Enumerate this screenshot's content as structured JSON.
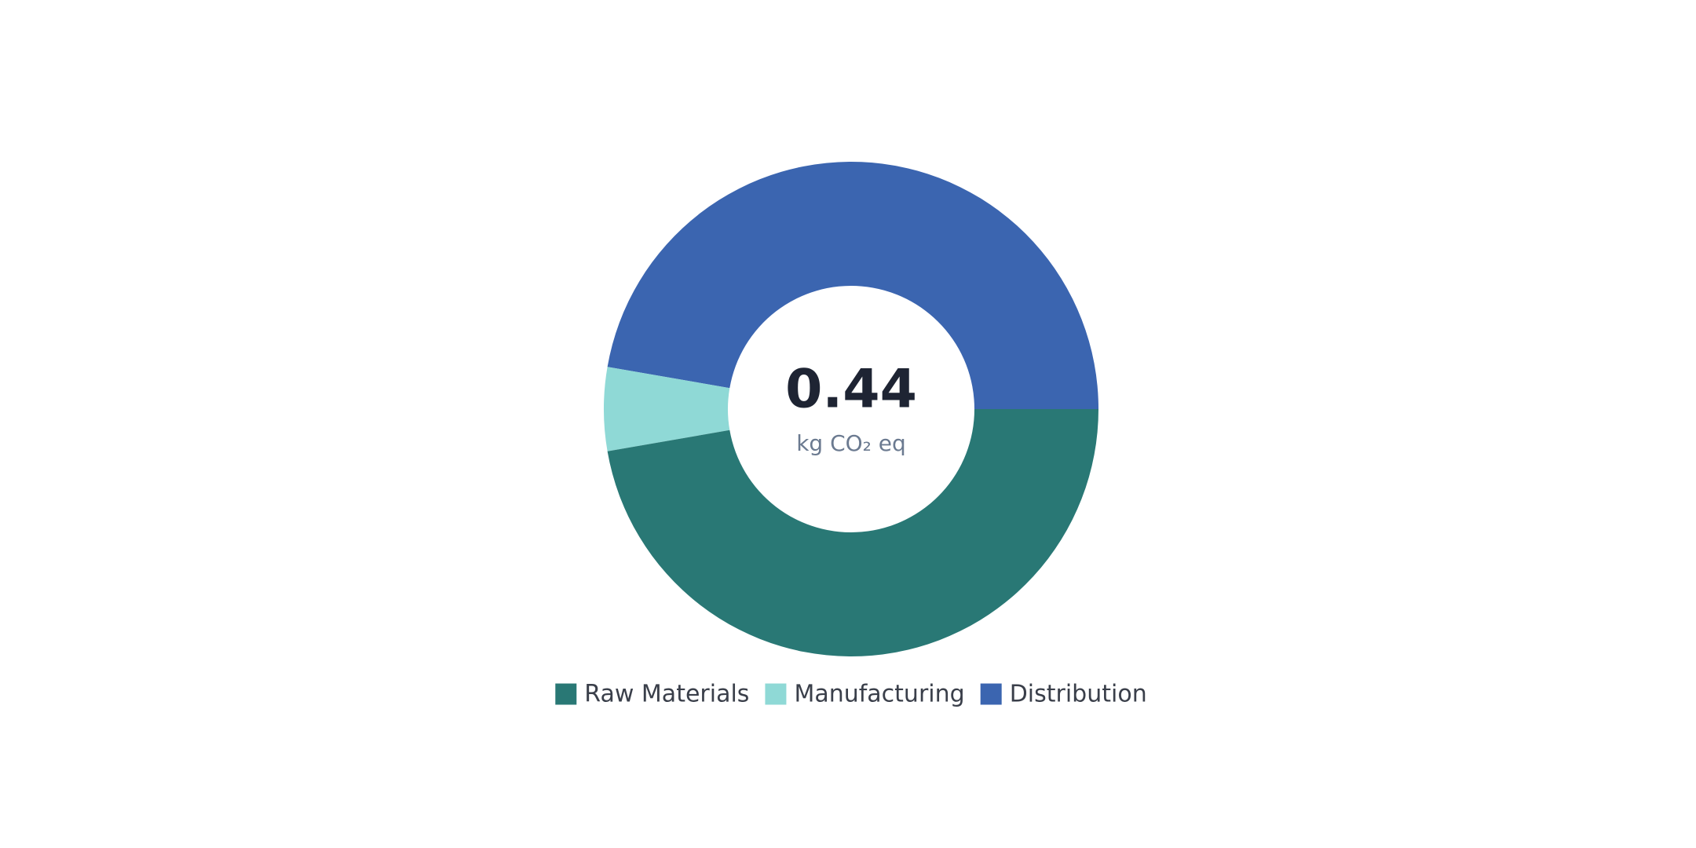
{
  "chart_data": {
    "type": "donut",
    "center_value": 0.44,
    "center_label": "kg CO₂ eq",
    "categories": [
      "Raw Materials",
      "Manufacturing",
      "Distribution"
    ],
    "values": [
      0.208,
      0.024,
      0.208
    ],
    "colors": [
      "#297875",
      "#8fd9d6",
      "#3b65b0"
    ]
  }
}
